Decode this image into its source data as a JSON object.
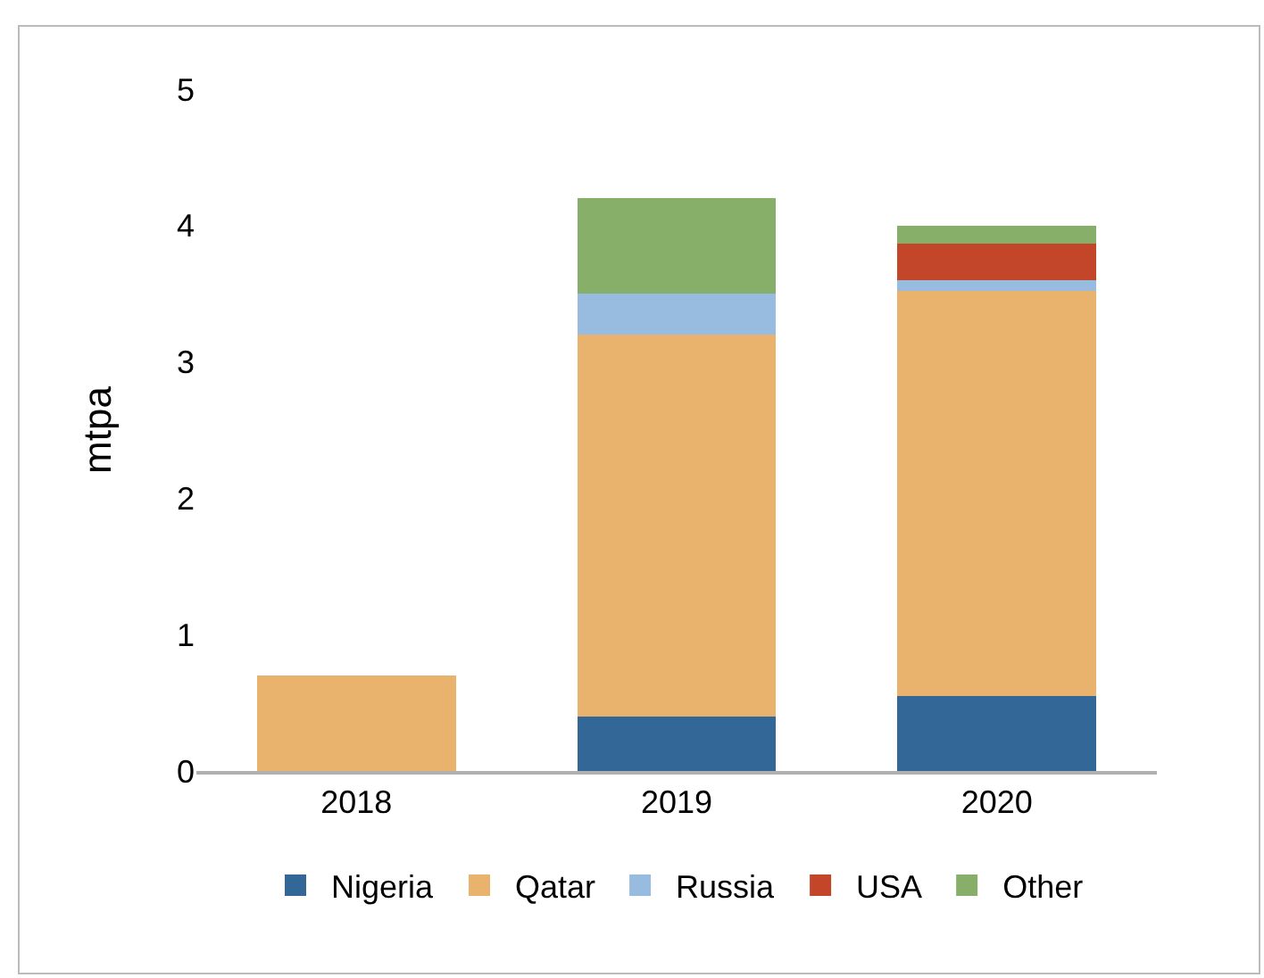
{
  "chart_data": {
    "type": "bar",
    "stacked": true,
    "ylabel": "mtpa",
    "categories": [
      "2018",
      "2019",
      "2020"
    ],
    "series": [
      {
        "name": "Nigeria",
        "color": "#336797",
        "values": [
          null,
          0.4,
          0.55
        ]
      },
      {
        "name": "Qatar",
        "color": "#e9b26d",
        "values": [
          0.7,
          2.8,
          2.97
        ]
      },
      {
        "name": "Russia",
        "color": "#98bcdf",
        "values": [
          null,
          0.3,
          0.08
        ]
      },
      {
        "name": "USA",
        "color": "#c3452a",
        "values": [
          null,
          null,
          0.27
        ]
      },
      {
        "name": "Other",
        "color": "#88af6a",
        "values": [
          null,
          0.7,
          0.13
        ]
      }
    ],
    "ylim": [
      0,
      5
    ],
    "yticks": [
      0,
      1,
      2,
      3,
      4,
      5
    ],
    "grid": false,
    "legend": "bottom"
  }
}
